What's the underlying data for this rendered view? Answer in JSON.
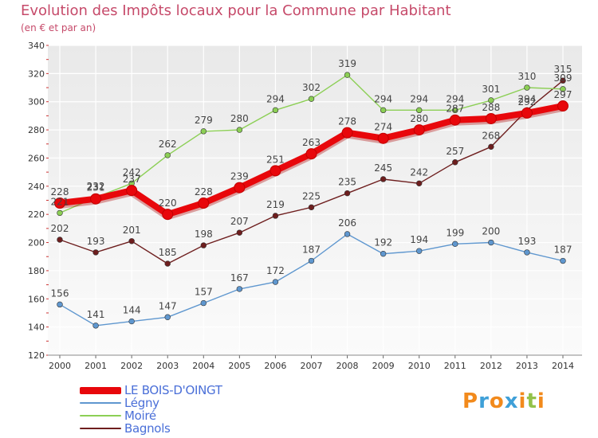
{
  "header": {
    "title": "Evolution des Impôts locaux pour la Commune par Habitant",
    "subtitle": "(en € et par an)"
  },
  "logo": {
    "text": "Proxiti",
    "letters": [
      "P",
      "r",
      "o",
      "x",
      "i",
      "t",
      "i"
    ],
    "colors": [
      "#f28a1c",
      "#3fa0d8",
      "#f28a1c",
      "#3fa0d8",
      "#f28a1c",
      "#93c24a",
      "#f28a1c"
    ]
  },
  "chart_data": {
    "type": "line",
    "title": "Evolution des Impôts locaux pour la Commune par Habitant",
    "subtitle": "(en € et par an)",
    "xlabel": "",
    "ylabel": "",
    "x": [
      "2000",
      "2001",
      "2002",
      "2003",
      "2004",
      "2005",
      "2006",
      "2007",
      "2008",
      "2009",
      "2010",
      "2011",
      "2012",
      "2013",
      "2014"
    ],
    "ylim": [
      120,
      340
    ],
    "yticks": [
      120,
      140,
      160,
      180,
      200,
      220,
      240,
      260,
      280,
      300,
      320,
      340
    ],
    "grid": true,
    "legend_position": "bottom-left",
    "series": [
      {
        "name": "LE BOIS-D'OINGT",
        "color": "#e8070b",
        "values": [
          228,
          231,
          237,
          220,
          228,
          239,
          251,
          263,
          278,
          274,
          280,
          287,
          288,
          292,
          297
        ]
      },
      {
        "name": "Légny",
        "color": "#5f97cf",
        "values": [
          156,
          141,
          144,
          147,
          157,
          167,
          172,
          187,
          206,
          192,
          194,
          199,
          200,
          193,
          187
        ]
      },
      {
        "name": "Moiré",
        "color": "#8ccf55",
        "values": [
          221,
          232,
          242,
          262,
          279,
          280,
          294,
          302,
          319,
          294,
          294,
          294,
          301,
          310,
          309
        ]
      },
      {
        "name": "Bagnols",
        "color": "#6e1e1e",
        "values": [
          202,
          193,
          201,
          185,
          198,
          207,
          219,
          225,
          235,
          245,
          242,
          257,
          268,
          294,
          315
        ]
      }
    ],
    "data_labels": [
      [
        "228",
        "231",
        "237",
        "220",
        "228",
        "239",
        "251",
        "263",
        "278",
        "274",
        "280",
        "287",
        "288",
        "292",
        "297"
      ],
      [
        "156",
        "141",
        "144",
        "147",
        "157",
        "167",
        "172",
        "187",
        "206",
        "192",
        "194",
        "199",
        "200",
        "193",
        "187"
      ],
      [
        "221",
        "232",
        "242",
        "262",
        "279",
        "280",
        "294",
        "302",
        "319",
        "294",
        "294",
        "294",
        "301",
        "310",
        "309"
      ],
      [
        "202",
        "193",
        "201",
        "185",
        "198",
        "207",
        "219",
        "225",
        "235",
        "245",
        "242",
        "257",
        "268",
        "294",
        "315"
      ]
    ]
  }
}
